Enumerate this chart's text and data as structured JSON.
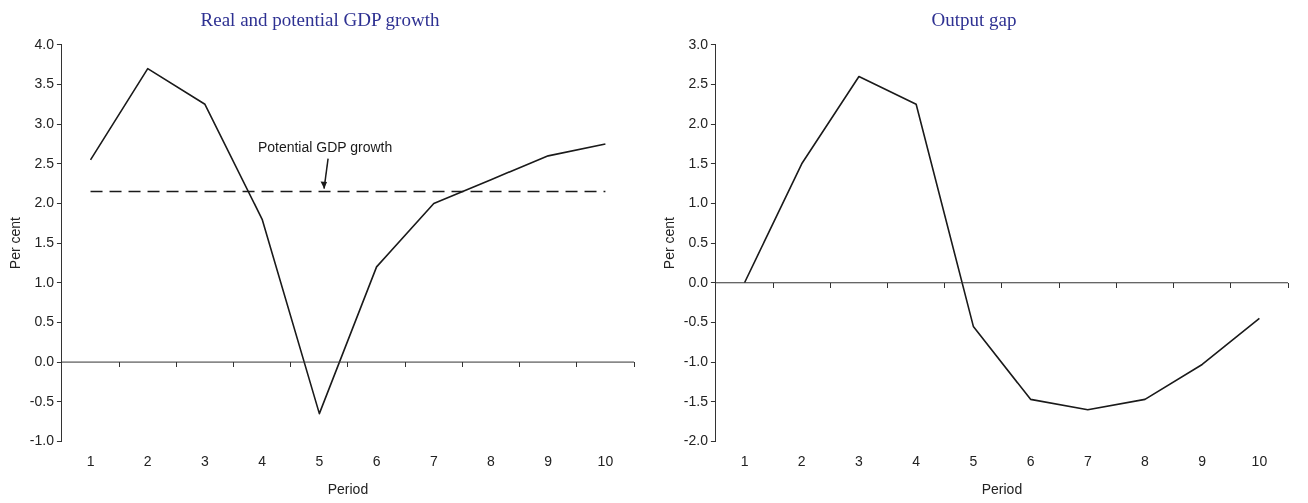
{
  "chart_data": [
    {
      "type": "line",
      "title": "Real and potential GDP growth",
      "xlabel": "Period",
      "ylabel": "Per cent",
      "categories": [
        "1",
        "2",
        "3",
        "4",
        "5",
        "6",
        "7",
        "8",
        "9",
        "10"
      ],
      "series": [
        {
          "color": "#1a1a1a",
          "values": [
            2.55,
            3.7,
            3.25,
            1.8,
            -0.65,
            1.2,
            2.0,
            2.3,
            2.6,
            2.75
          ]
        }
      ],
      "ylim": [
        -1.0,
        4.0
      ],
      "yticks": [
        {
          "value": -1,
          "label": "-1.0"
        },
        {
          "value": -0.5,
          "label": "-0.5"
        },
        {
          "value": 0,
          "label": "0.0"
        },
        {
          "value": 0.5,
          "label": "0.5"
        },
        {
          "value": 1,
          "label": "1.0"
        },
        {
          "value": 1.5,
          "label": "1.5"
        },
        {
          "value": 2,
          "label": "2.0"
        },
        {
          "value": 2.5,
          "label": "2.5"
        },
        {
          "value": 3,
          "label": "3.0"
        },
        {
          "value": 3.5,
          "label": "3.5"
        },
        {
          "value": 4,
          "label": "4.0"
        }
      ],
      "ref_lines": [
        {
          "axis": "y",
          "value": 0,
          "color": "#333333",
          "line_style": "solid"
        },
        {
          "axis": "y",
          "value": 2.15,
          "label": "Potential GDP growth",
          "color": "#1a1a1a",
          "line_style": "dashed"
        }
      ],
      "grid": false,
      "legend": false,
      "marker": "none",
      "line_style": "solid"
    },
    {
      "type": "line",
      "title": "Output gap",
      "xlabel": "Period",
      "ylabel": "Per cent",
      "categories": [
        "1",
        "2",
        "3",
        "4",
        "5",
        "6",
        "7",
        "8",
        "9",
        "10"
      ],
      "series": [
        {
          "color": "#1a1a1a",
          "values": [
            0,
            1.5,
            2.6,
            2.25,
            -0.55,
            -1.47,
            -1.6,
            -1.47,
            -1.03,
            -0.45
          ]
        }
      ],
      "ref_lines": [
        {
          "axis": "y",
          "value": 0,
          "color": "#333333",
          "line_style": "solid"
        }
      ],
      "ylim": [
        -2.0,
        3.0
      ],
      "yticks": [
        {
          "value": -2,
          "label": "-2.0"
        },
        {
          "value": -1.5,
          "label": "-1.5"
        },
        {
          "value": -1,
          "label": "-1.0"
        },
        {
          "value": -0.5,
          "label": "-0.5"
        },
        {
          "value": 0,
          "label": "0.0"
        },
        {
          "value": 0.5,
          "label": "0.5"
        },
        {
          "value": 1,
          "label": "1.0"
        },
        {
          "value": 1.5,
          "label": "1.5"
        },
        {
          "value": 2,
          "label": "2.0"
        },
        {
          "value": 2.5,
          "label": "2.5"
        },
        {
          "value": 3,
          "label": "3.0"
        }
      ],
      "grid": false,
      "legend": false,
      "marker": "none",
      "line_style": "solid"
    }
  ]
}
